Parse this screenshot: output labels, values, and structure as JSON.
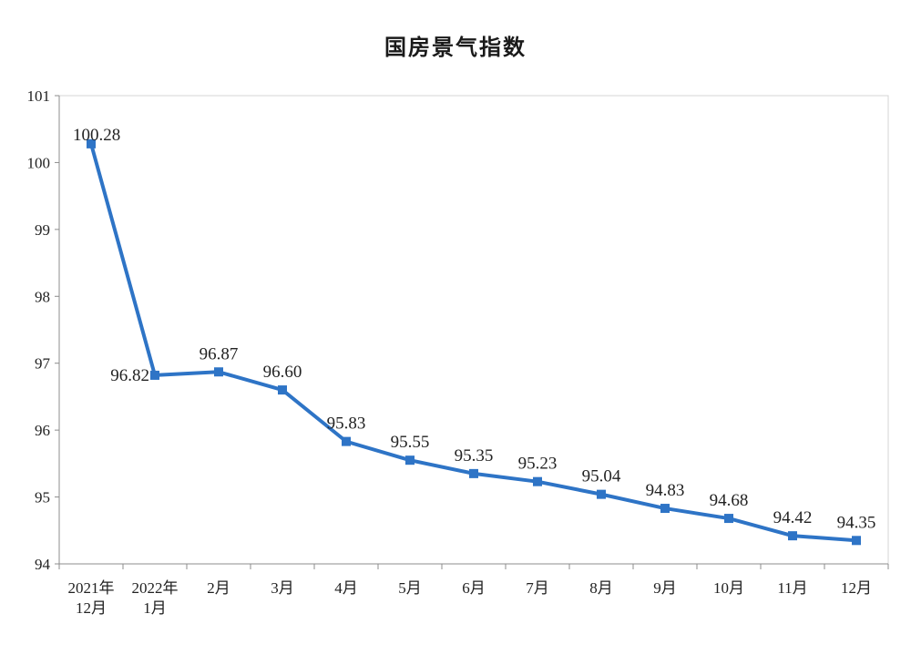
{
  "chart_data": {
    "type": "line",
    "title": "国房景气指数",
    "xlabel": "",
    "ylabel": "",
    "ylim": [
      94,
      101
    ],
    "yticks": [
      94,
      95,
      96,
      97,
      98,
      99,
      100,
      101
    ],
    "grid": false,
    "categories": [
      [
        "2021年",
        "12月"
      ],
      [
        "2022年",
        "1月"
      ],
      [
        "2月"
      ],
      [
        "3月"
      ],
      [
        "4月"
      ],
      [
        "5月"
      ],
      [
        "6月"
      ],
      [
        "7月"
      ],
      [
        "8月"
      ],
      [
        "9月"
      ],
      [
        "10月"
      ],
      [
        "11月"
      ],
      [
        "12月"
      ]
    ],
    "series": [
      {
        "values": [
          100.28,
          96.82,
          96.87,
          96.6,
          95.83,
          95.55,
          95.35,
          95.23,
          95.04,
          94.83,
          94.68,
          94.42,
          94.35
        ],
        "labels": [
          "100.28",
          "96.82",
          "96.87",
          "96.60",
          "95.83",
          "95.55",
          "95.35",
          "95.23",
          "95.04",
          "94.83",
          "94.68",
          "94.42",
          "94.35"
        ],
        "color": "#2e74c6"
      }
    ]
  }
}
